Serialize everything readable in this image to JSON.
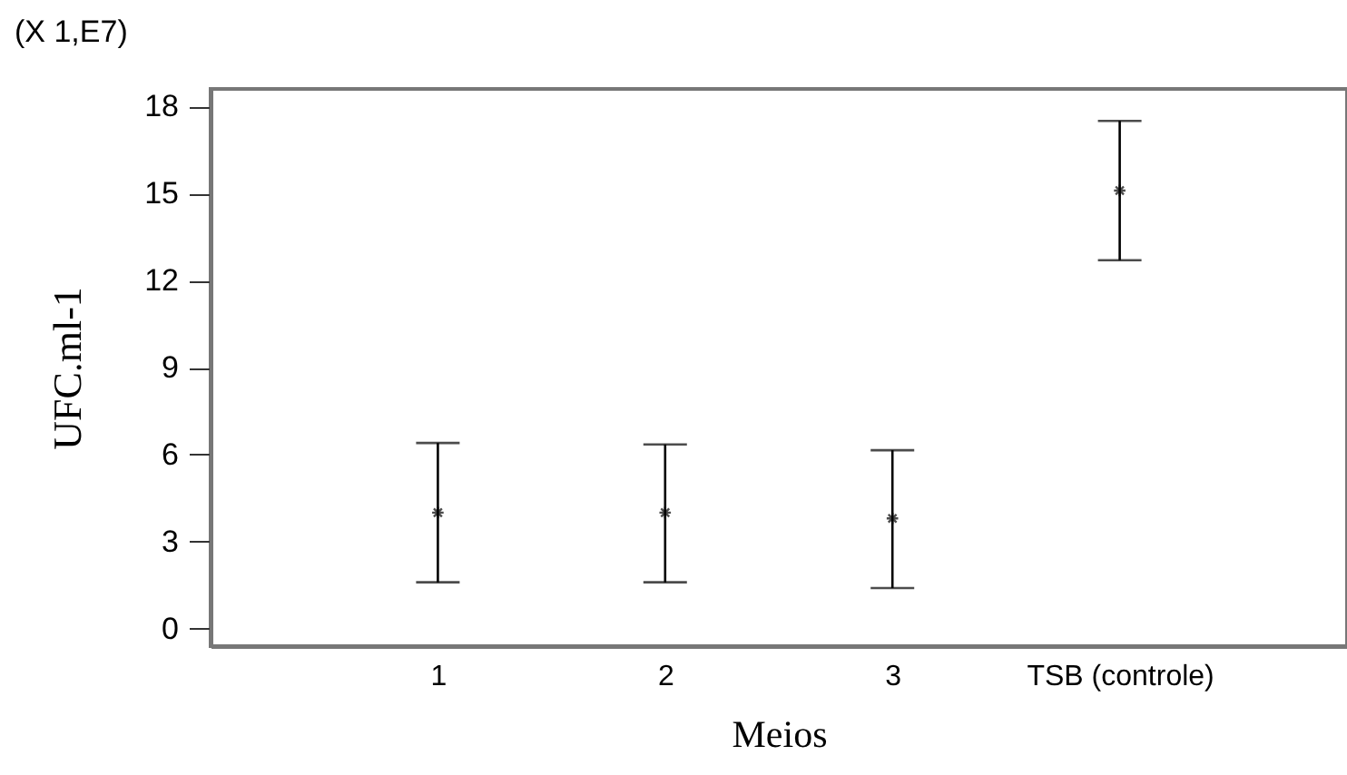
{
  "chart_data": {
    "type": "scatter",
    "xlabel": "Meios",
    "ylabel": "UFC.ml-1",
    "annotations": [
      "(X 1,E7)"
    ],
    "categories": [
      "1",
      "2",
      "3",
      "TSB (controle)"
    ],
    "values": [
      4.0,
      4.0,
      3.8,
      15.1
    ],
    "errors": [
      [
        1.6,
        6.4
      ],
      [
        1.6,
        6.35
      ],
      [
        1.4,
        6.15
      ],
      [
        12.7,
        17.5
      ]
    ],
    "color": "#000000",
    "marker": "cross",
    "ylim": [
      -0.6,
      18.6
    ],
    "yticks": [
      0,
      3,
      6,
      9,
      12,
      15,
      18
    ],
    "grid": false
  }
}
